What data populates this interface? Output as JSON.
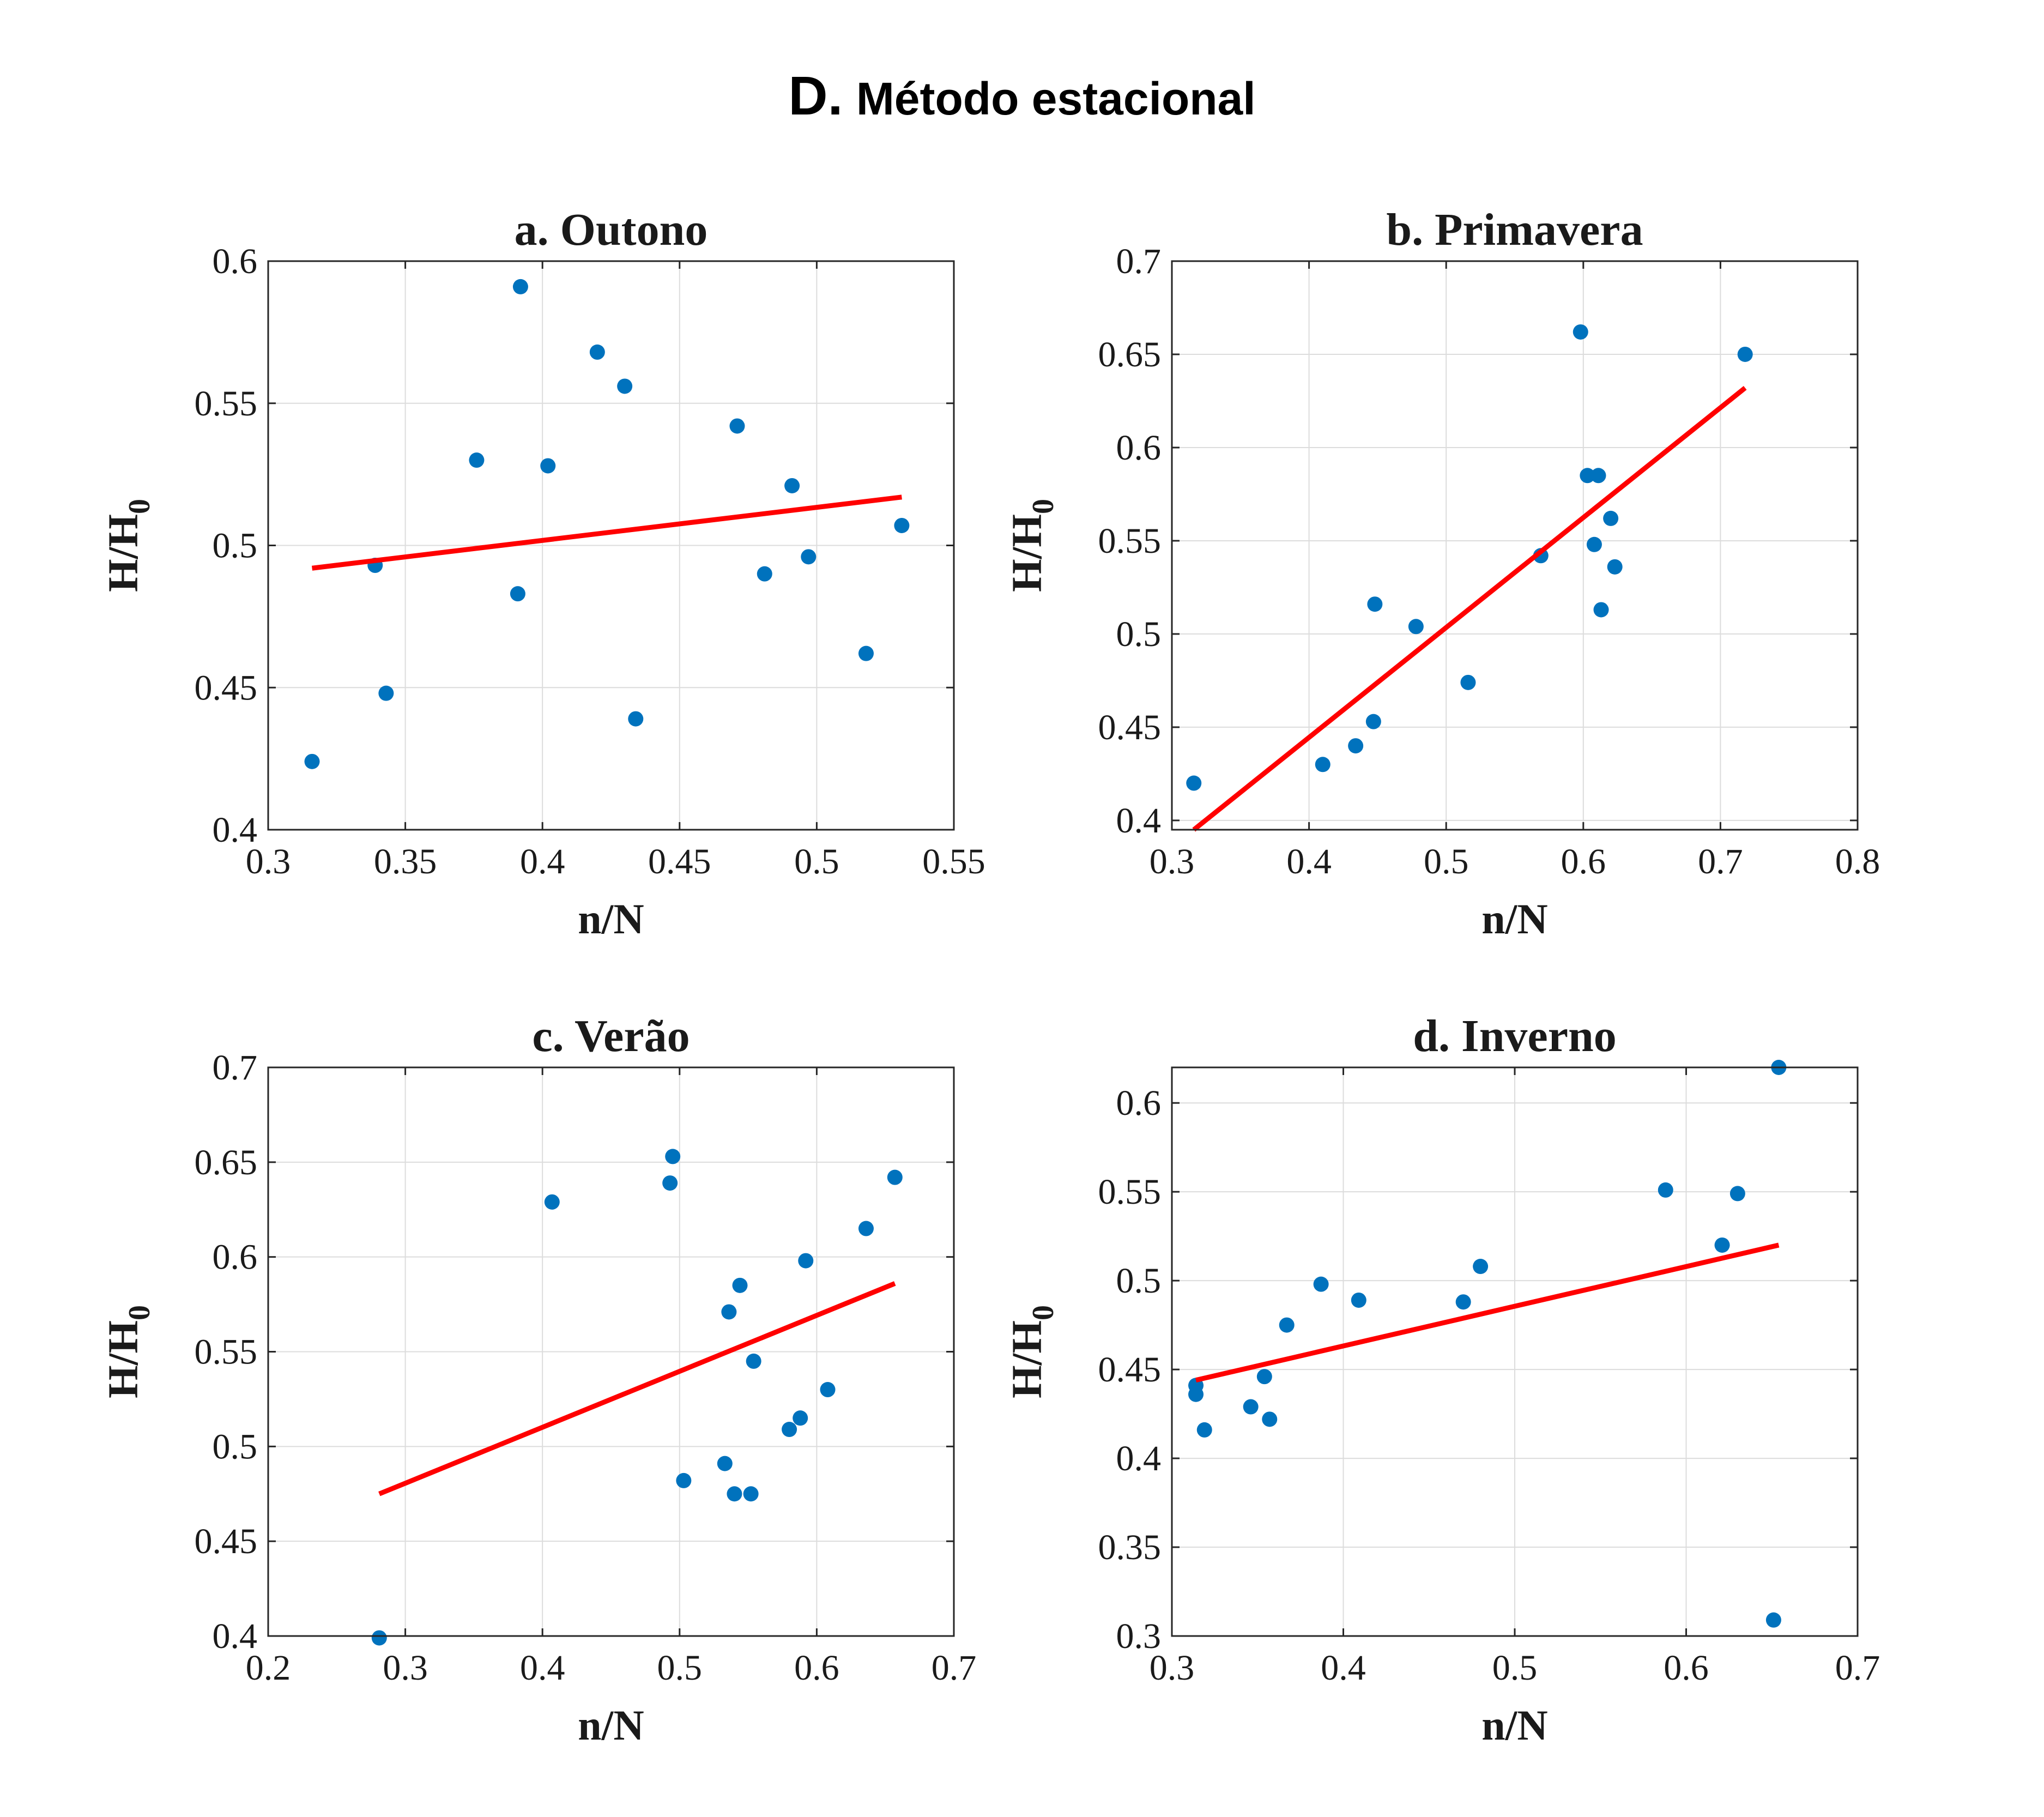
{
  "figure": {
    "title_prefix": "D.",
    "title_text": "Método estacional"
  },
  "chart_data": [
    {
      "type": "scatter",
      "title": "a. Outono",
      "xlabel": "n/N",
      "ylabel_main": "H/H",
      "ylabel_sub": "0",
      "xlim": [
        0.3,
        0.55
      ],
      "ylim": [
        0.4,
        0.6
      ],
      "xticks": [
        0.3,
        0.35,
        0.4,
        0.45,
        0.5,
        0.55
      ],
      "yticks": [
        0.4,
        0.45,
        0.5,
        0.55,
        0.6
      ],
      "xtick_labels": [
        "0.3",
        "0.35",
        "0.4",
        "0.45",
        "0.5",
        "0.55"
      ],
      "ytick_labels": [
        "0.4",
        "0.45",
        "0.5",
        "0.55",
        "0.6"
      ],
      "grid": true,
      "points": [
        [
          0.316,
          0.424
        ],
        [
          0.339,
          0.493
        ],
        [
          0.343,
          0.448
        ],
        [
          0.376,
          0.53
        ],
        [
          0.391,
          0.483
        ],
        [
          0.392,
          0.591
        ],
        [
          0.402,
          0.528
        ],
        [
          0.42,
          0.568
        ],
        [
          0.43,
          0.556
        ],
        [
          0.434,
          0.439
        ],
        [
          0.471,
          0.542
        ],
        [
          0.481,
          0.49
        ],
        [
          0.491,
          0.521
        ],
        [
          0.497,
          0.496
        ],
        [
          0.518,
          0.462
        ],
        [
          0.531,
          0.507
        ]
      ],
      "fit_line": [
        [
          0.316,
          0.492
        ],
        [
          0.531,
          0.517
        ]
      ],
      "colors": {
        "points": "#0072BD",
        "fit_line": "#FF0000"
      }
    },
    {
      "type": "scatter",
      "title": "b. Primavera",
      "xlabel": "n/N",
      "ylabel_main": "H/H",
      "ylabel_sub": "0",
      "xlim": [
        0.3,
        0.8
      ],
      "ylim": [
        0.395,
        0.7
      ],
      "xticks": [
        0.3,
        0.4,
        0.5,
        0.6,
        0.7,
        0.8
      ],
      "yticks": [
        0.4,
        0.45,
        0.5,
        0.55,
        0.6,
        0.65,
        0.7
      ],
      "xtick_labels": [
        "0.3",
        "0.4",
        "0.5",
        "0.6",
        "0.7",
        "0.8"
      ],
      "ytick_labels": [
        "0.4",
        "0.45",
        "0.5",
        "0.55",
        "0.6",
        "0.65",
        "0.7"
      ],
      "grid": true,
      "points": [
        [
          0.316,
          0.42
        ],
        [
          0.41,
          0.43
        ],
        [
          0.434,
          0.44
        ],
        [
          0.447,
          0.453
        ],
        [
          0.448,
          0.516
        ],
        [
          0.478,
          0.504
        ],
        [
          0.516,
          0.474
        ],
        [
          0.569,
          0.542
        ],
        [
          0.598,
          0.662
        ],
        [
          0.603,
          0.585
        ],
        [
          0.611,
          0.585
        ],
        [
          0.608,
          0.548
        ],
        [
          0.62,
          0.562
        ],
        [
          0.623,
          0.536
        ],
        [
          0.613,
          0.513
        ],
        [
          0.718,
          0.65
        ]
      ],
      "fit_line": [
        [
          0.316,
          0.395
        ],
        [
          0.718,
          0.632
        ]
      ],
      "colors": {
        "points": "#0072BD",
        "fit_line": "#FF0000"
      }
    },
    {
      "type": "scatter",
      "title": "c. Verão",
      "xlabel": "n/N",
      "ylabel_main": "H/H",
      "ylabel_sub": "0",
      "xlim": [
        0.2,
        0.7
      ],
      "ylim": [
        0.4,
        0.7
      ],
      "xticks": [
        0.2,
        0.3,
        0.4,
        0.5,
        0.6,
        0.7
      ],
      "yticks": [
        0.4,
        0.45,
        0.5,
        0.55,
        0.6,
        0.65,
        0.7
      ],
      "xtick_labels": [
        "0.2",
        "0.3",
        "0.4",
        "0.5",
        "0.6",
        "0.7"
      ],
      "ytick_labels": [
        "0.4",
        "0.45",
        "0.5",
        "0.55",
        "0.6",
        "0.65",
        "0.7"
      ],
      "grid": true,
      "points": [
        [
          0.281,
          0.399
        ],
        [
          0.407,
          0.629
        ],
        [
          0.493,
          0.639
        ],
        [
          0.495,
          0.653
        ],
        [
          0.503,
          0.482
        ],
        [
          0.533,
          0.491
        ],
        [
          0.536,
          0.571
        ],
        [
          0.54,
          0.475
        ],
        [
          0.544,
          0.585
        ],
        [
          0.552,
          0.475
        ],
        [
          0.554,
          0.545
        ],
        [
          0.58,
          0.509
        ],
        [
          0.588,
          0.515
        ],
        [
          0.592,
          0.598
        ],
        [
          0.608,
          0.53
        ],
        [
          0.636,
          0.615
        ],
        [
          0.657,
          0.642
        ]
      ],
      "fit_line": [
        [
          0.281,
          0.475
        ],
        [
          0.657,
          0.586
        ]
      ],
      "colors": {
        "points": "#0072BD",
        "fit_line": "#FF0000"
      }
    },
    {
      "type": "scatter",
      "title": "d. Inverno",
      "xlabel": "n/N",
      "ylabel_main": "H/H",
      "ylabel_sub": "0",
      "xlim": [
        0.3,
        0.7
      ],
      "ylim": [
        0.3,
        0.62
      ],
      "xticks": [
        0.3,
        0.4,
        0.5,
        0.6,
        0.7
      ],
      "yticks": [
        0.3,
        0.35,
        0.4,
        0.45,
        0.5,
        0.55,
        0.6
      ],
      "xtick_labels": [
        "0.3",
        "0.4",
        "0.5",
        "0.6",
        "0.7"
      ],
      "ytick_labels": [
        "0.3",
        "0.35",
        "0.4",
        "0.45",
        "0.5",
        "0.55",
        "0.6"
      ],
      "grid": true,
      "points": [
        [
          0.314,
          0.441
        ],
        [
          0.314,
          0.436
        ],
        [
          0.319,
          0.416
        ],
        [
          0.346,
          0.429
        ],
        [
          0.354,
          0.446
        ],
        [
          0.357,
          0.422
        ],
        [
          0.367,
          0.475
        ],
        [
          0.387,
          0.498
        ],
        [
          0.409,
          0.489
        ],
        [
          0.47,
          0.488
        ],
        [
          0.48,
          0.508
        ],
        [
          0.588,
          0.551
        ],
        [
          0.621,
          0.52
        ],
        [
          0.63,
          0.549
        ],
        [
          0.651,
          0.309
        ],
        [
          0.654,
          0.62
        ]
      ],
      "fit_line": [
        [
          0.314,
          0.444
        ],
        [
          0.654,
          0.52
        ]
      ],
      "colors": {
        "points": "#0072BD",
        "fit_line": "#FF0000"
      }
    }
  ]
}
